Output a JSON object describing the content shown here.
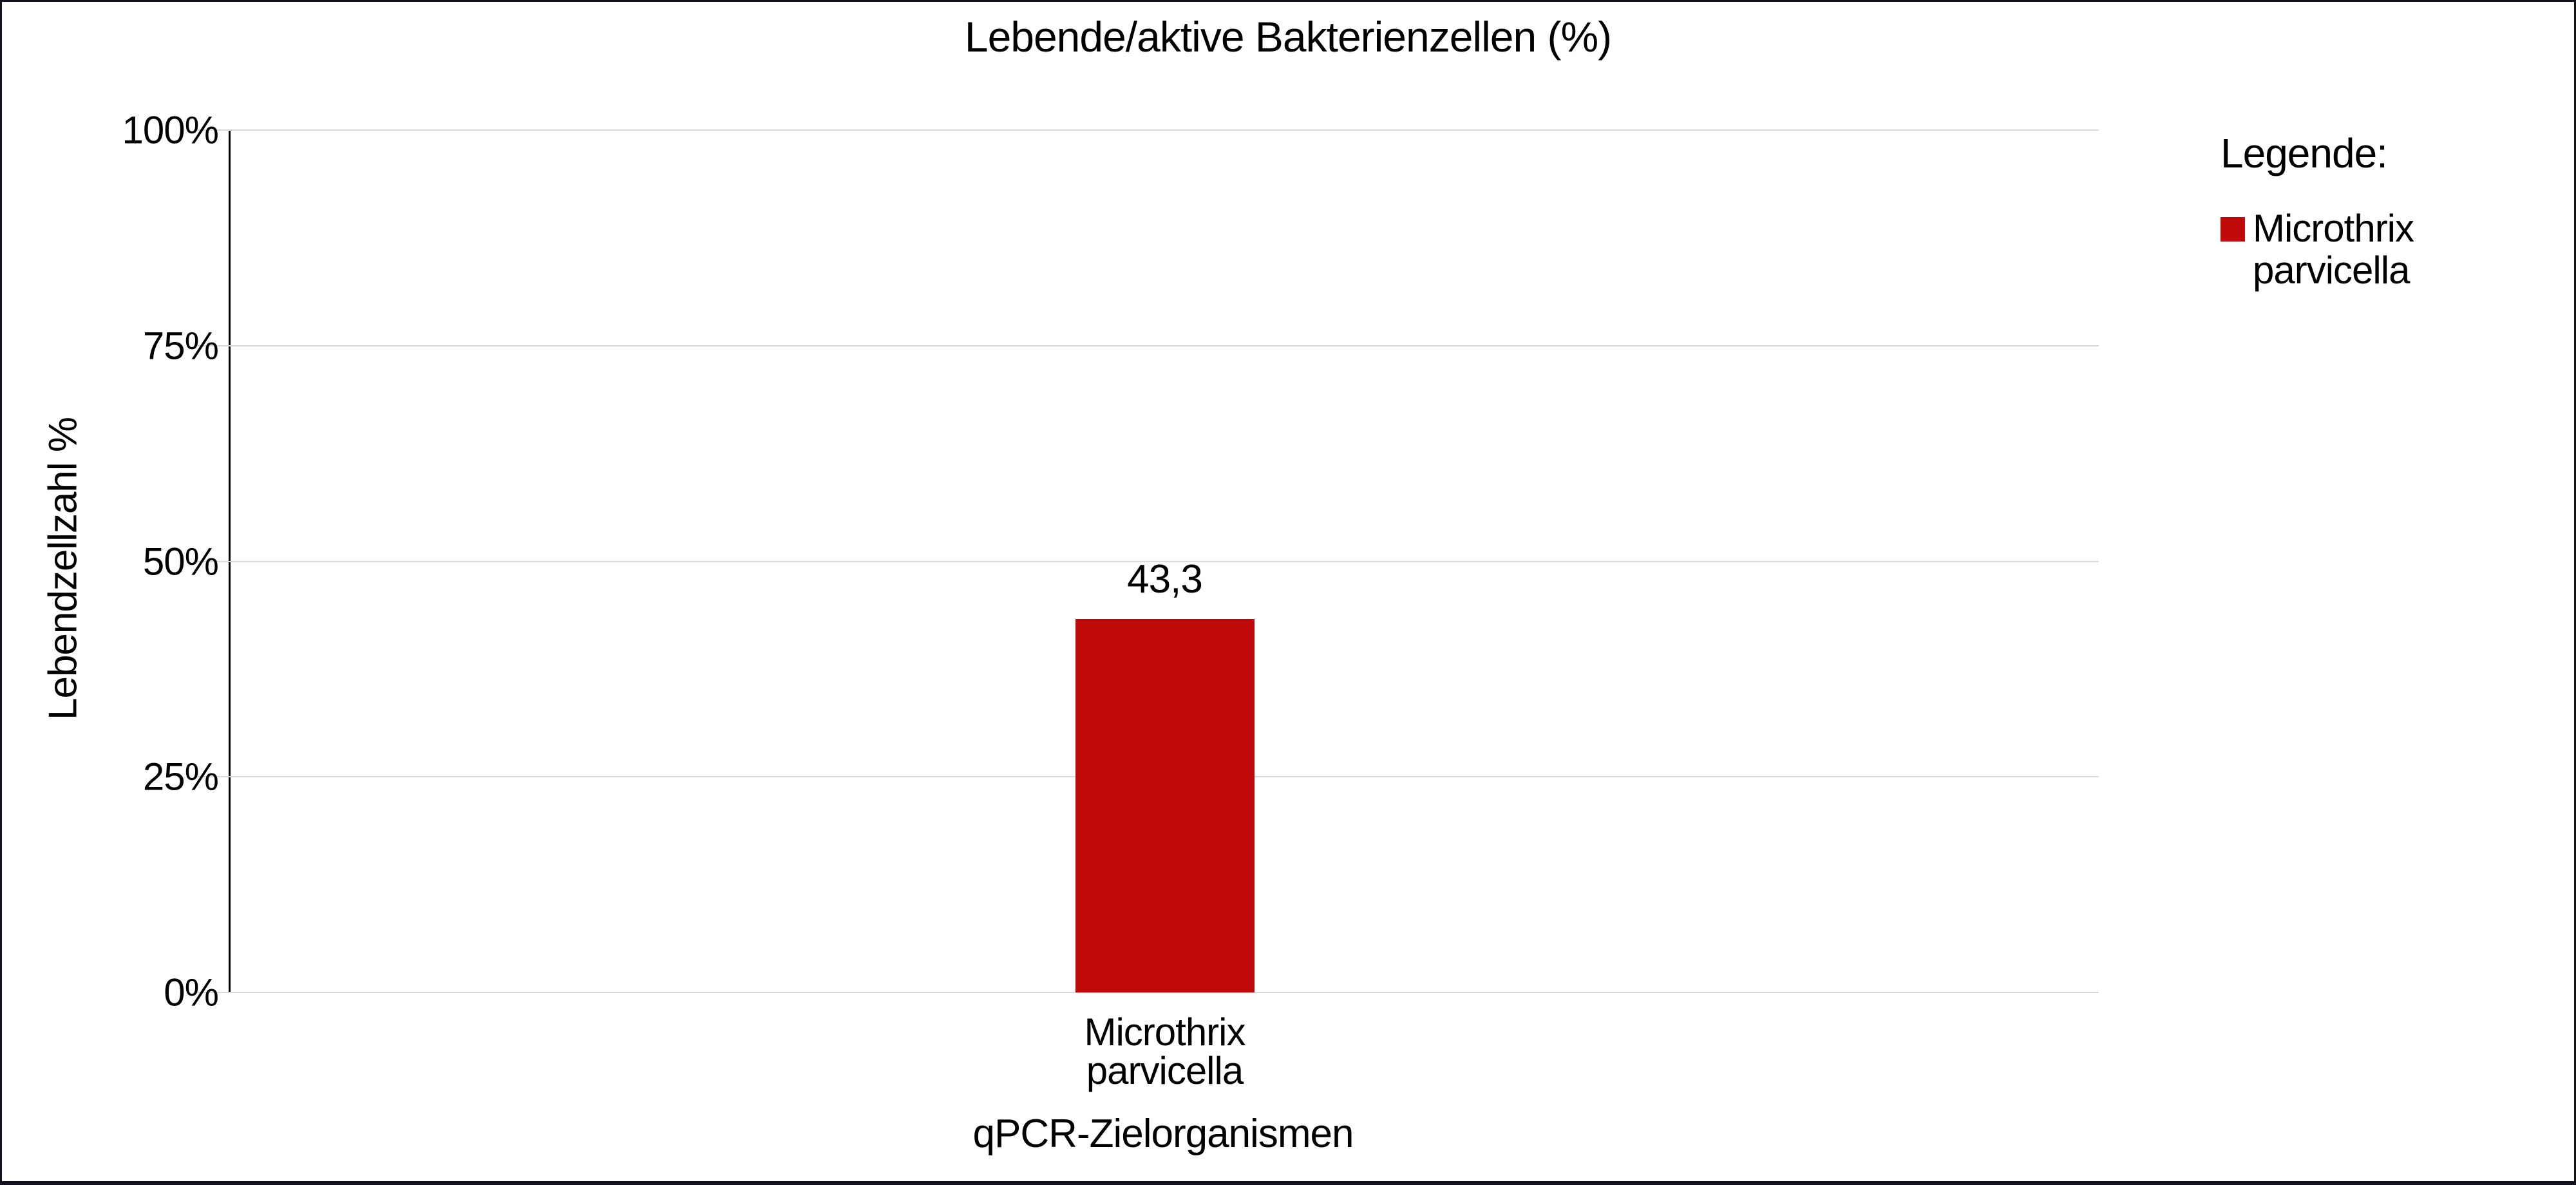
{
  "page": {
    "background": "#ffffff",
    "frame_color": "#12121c"
  },
  "chart_data": {
    "type": "bar",
    "title": "Lebende/aktive Bakterienzellen (%)",
    "xlabel": "qPCR-Zielorganismen",
    "ylabel": "Lebendzellzahl %",
    "categories": [
      "Microthrix parvicella"
    ],
    "values": [
      43.3
    ],
    "value_labels": [
      "43,3"
    ],
    "ylim": [
      0,
      100
    ],
    "yticks": [
      {
        "value": 0,
        "label": "0%"
      },
      {
        "value": 25,
        "label": "25%"
      },
      {
        "value": 50,
        "label": "50%"
      },
      {
        "value": 75,
        "label": "75%"
      },
      {
        "value": 100,
        "label": "100%"
      }
    ],
    "grid": true,
    "gridline_color": "#d9d9d9",
    "axis_line_color": "#000000",
    "bar_color": "#c10a0a",
    "legend_position": "right"
  },
  "legend": {
    "title": "Legende:",
    "items": [
      {
        "label": "Microthrix parvicella",
        "color": "#c10a0a"
      }
    ]
  }
}
